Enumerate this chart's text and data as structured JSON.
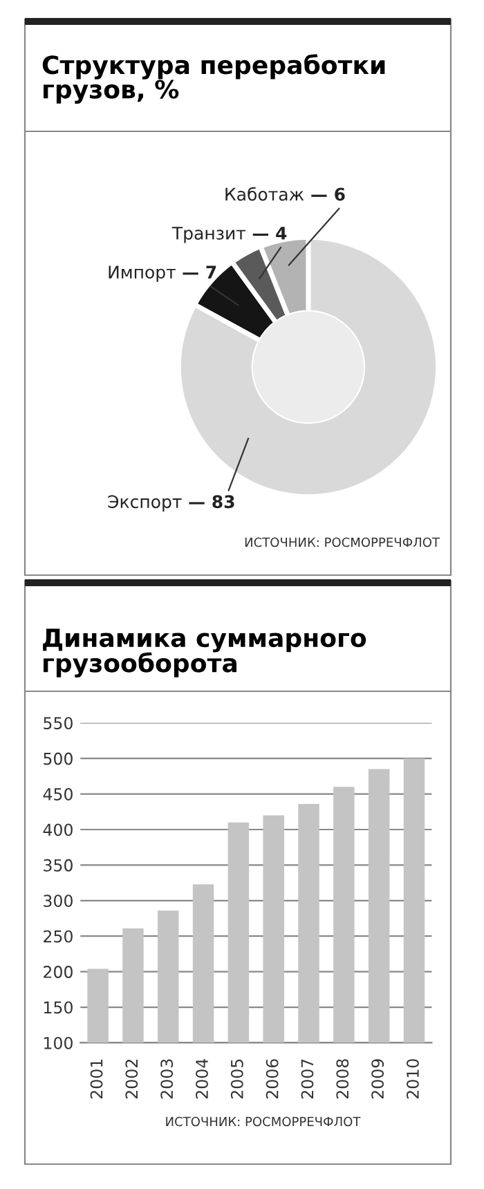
{
  "chart_data": [
    {
      "type": "donut",
      "title": "Структура переработки\nгрузов, %",
      "categories": [
        "Экспорт",
        "Импорт",
        "Транзит",
        "Каботаж"
      ],
      "values": [
        83,
        7,
        4,
        6
      ],
      "colors": [
        "#d9d9d9",
        "#151515",
        "#5a5a5a",
        "#b3b3b3"
      ],
      "value_labels": [
        "— 83",
        "— 7",
        "— 4",
        "— 6"
      ],
      "annotations": [
        "ИСТОЧНИК: РОСМОРРЕЧФЛОТ"
      ]
    },
    {
      "type": "bar",
      "title": "Динамика суммарного\nгрузооборота",
      "categories": [
        "2001",
        "2002",
        "2003",
        "2004",
        "2005",
        "2006",
        "2007",
        "2008",
        "2009",
        "2010"
      ],
      "values": [
        204,
        261,
        286,
        323,
        410,
        420,
        436,
        460,
        485,
        500
      ],
      "color": "#c4c4c4",
      "ylim": [
        100,
        550
      ],
      "yticks": [
        100,
        150,
        200,
        250,
        300,
        350,
        400,
        450,
        500,
        550
      ],
      "grid": "y",
      "annotations": [
        "ИСТОЧНИК: РОСМОРРЕЧФЛОТ"
      ]
    }
  ]
}
